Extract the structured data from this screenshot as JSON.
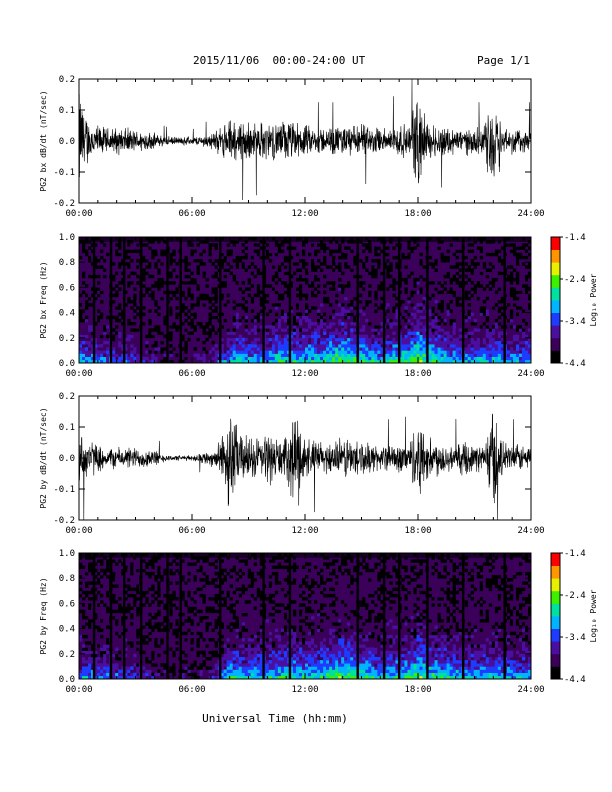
{
  "header": {
    "title": "2015/11/06  00:00-24:00 UT",
    "page": "Page 1/1"
  },
  "footer": {
    "xlabel": "Universal Time (hh:mm)"
  },
  "colors": {
    "trace": "#000000",
    "colormap": [
      "#000000",
      "#3a005a",
      "#4b0fa0",
      "#1e3cff",
      "#00b4ff",
      "#00e0a0",
      "#3cf000",
      "#e6f000",
      "#ff9600",
      "#ff0000"
    ]
  },
  "chart_data": [
    {
      "type": "line",
      "ylabel": "PG2 bx dB/dt (nT/sec)",
      "xlim": [
        0,
        24
      ],
      "ylim": [
        -0.2,
        0.2
      ],
      "xticks": [
        "00:00",
        "06:00",
        "12:00",
        "18:00",
        "24:00"
      ],
      "yticks": [
        "-0.2",
        "-0.1",
        "0.0",
        "0.1",
        "0.2"
      ],
      "series": [
        {
          "x": [
            0,
            0.5,
            1,
            1.5,
            2,
            2.5,
            3,
            3.5,
            4,
            4.5,
            5,
            5.5,
            6,
            6.5,
            7,
            7.5,
            8,
            8.5,
            9,
            9.5,
            10,
            10.5,
            11,
            11.5,
            12,
            12.5,
            13,
            13.5,
            14,
            14.5,
            15,
            15.5,
            16,
            16.5,
            17,
            17.5,
            18,
            18.5,
            19,
            19.5,
            20,
            20.5,
            21,
            21.5,
            22,
            22.5,
            23,
            23.5,
            24
          ],
          "envelope": [
            0.2,
            0.08,
            0.06,
            0.05,
            0.05,
            0.05,
            0.04,
            0.04,
            0.03,
            0.02,
            0.015,
            0.015,
            0.015,
            0.02,
            0.03,
            0.05,
            0.08,
            0.08,
            0.07,
            0.07,
            0.07,
            0.07,
            0.08,
            0.07,
            0.06,
            0.05,
            0.05,
            0.05,
            0.06,
            0.06,
            0.06,
            0.05,
            0.05,
            0.05,
            0.07,
            0.05,
            0.2,
            0.07,
            0.06,
            0.06,
            0.05,
            0.05,
            0.05,
            0.05,
            0.2,
            0.06,
            0.05,
            0.05,
            0.05
          ]
        }
      ]
    },
    {
      "type": "heatmap",
      "ylabel": "PG2 bx Freq (Hz)",
      "xlim": [
        0,
        24
      ],
      "ylim": [
        0.0,
        1.0
      ],
      "xticks": [
        "00:00",
        "06:00",
        "12:00",
        "18:00",
        "24:00"
      ],
      "yticks": [
        "0.0",
        "0.2",
        "0.4",
        "0.6",
        "0.8",
        "1.0"
      ],
      "colorbar": {
        "label": "Log₁₀ Power",
        "range": [
          -4.4,
          -1.4
        ],
        "ticks": [
          "-1.4",
          "-2.4",
          "-3.4",
          "-4.4"
        ]
      },
      "band_activity": [
        0.5,
        0.45,
        0.4,
        0.4,
        0.35,
        0.35,
        0.3,
        0.25,
        0.2,
        0.15,
        0.1,
        0.1,
        0.1,
        0.15,
        0.2,
        0.35,
        0.5,
        0.55,
        0.5,
        0.5,
        0.5,
        0.55,
        0.6,
        0.55,
        0.55,
        0.6,
        0.6,
        0.65,
        0.7,
        0.65,
        0.6,
        0.55,
        0.5,
        0.55,
        0.6,
        0.6,
        0.75,
        0.65,
        0.6,
        0.55,
        0.5,
        0.5,
        0.5,
        0.5,
        0.55,
        0.5,
        0.45,
        0.45,
        0.45
      ],
      "gaps_hours": [
        0.8,
        1.7,
        2.4,
        3.3,
        4.7,
        5.4,
        7.5,
        9.8,
        11.2,
        14.8,
        16.2,
        17.0,
        18.5,
        20.4,
        22.6
      ]
    },
    {
      "type": "line",
      "ylabel": "PG2 by dB/dt (nT/sec)",
      "xlim": [
        0,
        24
      ],
      "ylim": [
        -0.2,
        0.2
      ],
      "xticks": [
        "00:00",
        "06:00",
        "12:00",
        "18:00",
        "24:00"
      ],
      "yticks": [
        "-0.2",
        "-0.1",
        "0.0",
        "0.1",
        "0.2"
      ],
      "series": [
        {
          "x": [
            0,
            0.5,
            1,
            1.5,
            2,
            2.5,
            3,
            3.5,
            4,
            4.5,
            5,
            5.5,
            6,
            6.5,
            7,
            7.5,
            8,
            8.5,
            9,
            9.5,
            10,
            10.5,
            11,
            11.5,
            12,
            12.5,
            13,
            13.5,
            14,
            14.5,
            15,
            15.5,
            16,
            16.5,
            17,
            17.5,
            18,
            18.5,
            19,
            19.5,
            20,
            20.5,
            21,
            21.5,
            22,
            22.5,
            23,
            23.5,
            24
          ],
          "envelope": [
            0.1,
            0.08,
            0.05,
            0.04,
            0.04,
            0.04,
            0.04,
            0.04,
            0.03,
            0.015,
            0.01,
            0.01,
            0.01,
            0.02,
            0.03,
            0.06,
            0.2,
            0.1,
            0.08,
            0.08,
            0.1,
            0.08,
            0.07,
            0.2,
            0.08,
            0.07,
            0.06,
            0.06,
            0.08,
            0.08,
            0.07,
            0.05,
            0.05,
            0.05,
            0.06,
            0.05,
            0.16,
            0.08,
            0.07,
            0.06,
            0.05,
            0.06,
            0.05,
            0.05,
            0.2,
            0.06,
            0.05,
            0.05,
            0.05
          ]
        }
      ]
    },
    {
      "type": "heatmap",
      "ylabel": "PG2 by Freq (Hz)",
      "xlim": [
        0,
        24
      ],
      "ylim": [
        0.0,
        1.0
      ],
      "xticks": [
        "00:00",
        "06:00",
        "12:00",
        "18:00",
        "24:00"
      ],
      "yticks": [
        "0.0",
        "0.2",
        "0.4",
        "0.6",
        "0.8",
        "1.0"
      ],
      "colorbar": {
        "label": "Log₁₀ Power",
        "range": [
          -4.4,
          -1.4
        ],
        "ticks": [
          "-1.4",
          "-2.4",
          "-3.4",
          "-4.4"
        ]
      },
      "band_activity": [
        0.45,
        0.45,
        0.4,
        0.4,
        0.35,
        0.35,
        0.3,
        0.25,
        0.2,
        0.15,
        0.1,
        0.1,
        0.1,
        0.15,
        0.2,
        0.35,
        0.55,
        0.55,
        0.5,
        0.55,
        0.55,
        0.55,
        0.6,
        0.6,
        0.55,
        0.6,
        0.6,
        0.65,
        0.7,
        0.65,
        0.6,
        0.55,
        0.5,
        0.55,
        0.6,
        0.6,
        0.7,
        0.65,
        0.6,
        0.55,
        0.55,
        0.5,
        0.5,
        0.5,
        0.55,
        0.5,
        0.45,
        0.45,
        0.45
      ],
      "gaps_hours": [
        0.8,
        1.7,
        2.4,
        3.3,
        4.7,
        5.4,
        7.5,
        9.8,
        11.2,
        14.8,
        16.2,
        17.0,
        18.5,
        20.4,
        22.6
      ]
    }
  ]
}
